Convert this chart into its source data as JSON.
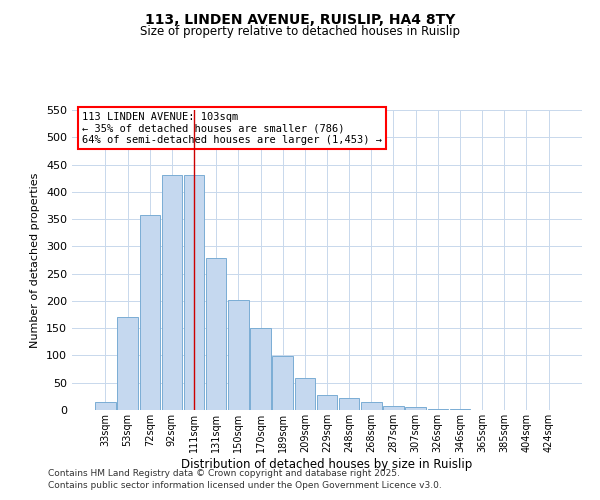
{
  "title": "113, LINDEN AVENUE, RUISLIP, HA4 8TY",
  "subtitle": "Size of property relative to detached houses in Ruislip",
  "xlabel": "Distribution of detached houses by size in Ruislip",
  "ylabel": "Number of detached properties",
  "bar_color": "#c5d8ef",
  "bar_edge_color": "#7aadd4",
  "background_color": "#ffffff",
  "grid_color": "#c8d8ec",
  "categories": [
    "33sqm",
    "53sqm",
    "72sqm",
    "92sqm",
    "111sqm",
    "131sqm",
    "150sqm",
    "170sqm",
    "189sqm",
    "209sqm",
    "229sqm",
    "248sqm",
    "268sqm",
    "287sqm",
    "307sqm",
    "326sqm",
    "346sqm",
    "365sqm",
    "385sqm",
    "404sqm",
    "424sqm"
  ],
  "values": [
    15,
    170,
    357,
    430,
    430,
    278,
    202,
    150,
    99,
    59,
    27,
    22,
    14,
    7,
    5,
    2,
    1,
    0,
    0,
    0,
    0
  ],
  "ylim": [
    0,
    550
  ],
  "yticks": [
    0,
    50,
    100,
    150,
    200,
    250,
    300,
    350,
    400,
    450,
    500,
    550
  ],
  "annotation_title": "113 LINDEN AVENUE: 103sqm",
  "annotation_line1": "← 35% of detached houses are smaller (786)",
  "annotation_line2": "64% of semi-detached houses are larger (1,453) →",
  "highlight_bar_index": 4,
  "vline_color": "#cc0000",
  "footer_line1": "Contains HM Land Registry data © Crown copyright and database right 2025.",
  "footer_line2": "Contains public sector information licensed under the Open Government Licence v3.0."
}
